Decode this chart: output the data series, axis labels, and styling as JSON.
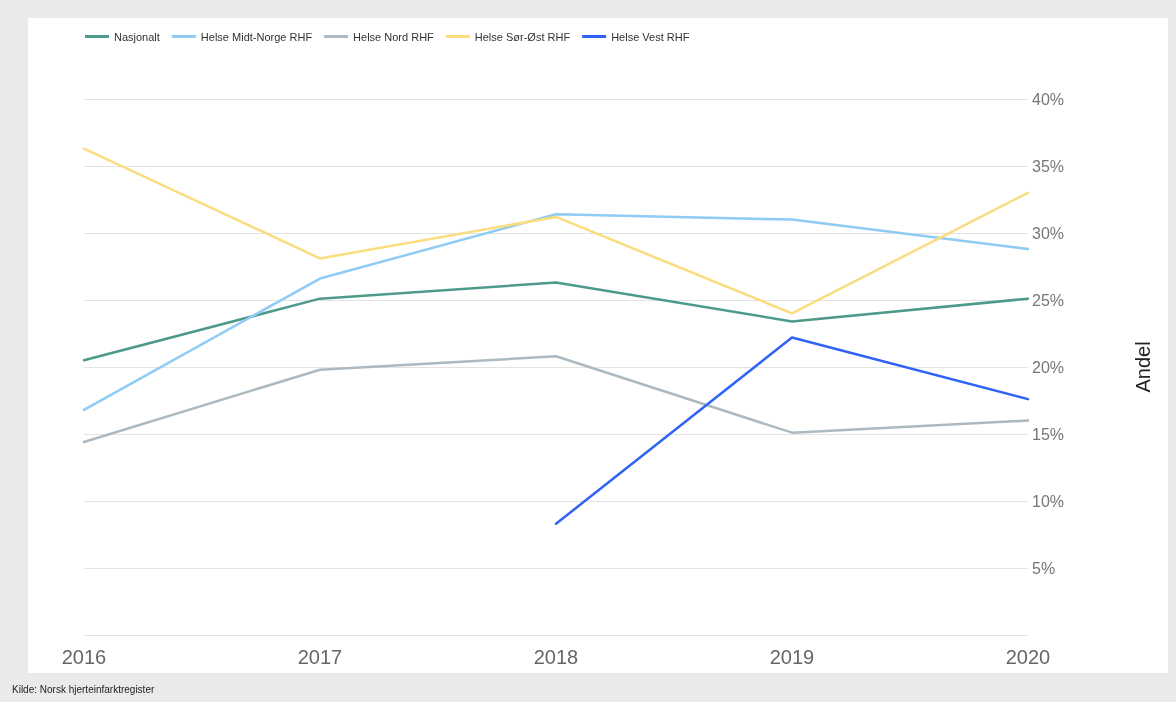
{
  "chart_data": {
    "type": "line",
    "ylabel": "Andel",
    "categories": [
      "2016",
      "2017",
      "2018",
      "2019",
      "2020"
    ],
    "series": [
      {
        "name": "Nasjonalt",
        "color": "#4e9a8a",
        "values": [
          20.5,
          25.1,
          26.3,
          23.4,
          25.1
        ]
      },
      {
        "name": "Helse Midt-Norge RHF",
        "color": "#8ecbf5",
        "values": [
          16.8,
          26.6,
          31.4,
          31.0,
          28.8
        ]
      },
      {
        "name": "Helse Nord RHF",
        "color": "#adb9c1",
        "values": [
          14.4,
          19.8,
          20.8,
          15.1,
          16.0
        ]
      },
      {
        "name": "Helse Sør-Øst RHF",
        "color": "#fbdc7e",
        "values": [
          36.3,
          28.1,
          31.2,
          24.0,
          33.0
        ]
      },
      {
        "name": "Helse Vest RHF",
        "color": "#2f62f5",
        "values": [
          null,
          null,
          8.3,
          22.2,
          17.6
        ]
      }
    ],
    "ylim": [
      0,
      40
    ],
    "yticks": [
      {
        "value": 5,
        "label": "5%"
      },
      {
        "value": 10,
        "label": "10%"
      },
      {
        "value": 15,
        "label": "15%"
      },
      {
        "value": 20,
        "label": "20%"
      },
      {
        "value": 25,
        "label": "25%"
      },
      {
        "value": 30,
        "label": "30%"
      },
      {
        "value": 35,
        "label": "35%"
      },
      {
        "value": 40,
        "label": "40%"
      }
    ],
    "grid": "y",
    "legend": "top left",
    "marker": "none",
    "line_style": "solid",
    "annotations": [
      "Kilde: Norsk hjerteinfarktregister"
    ]
  }
}
